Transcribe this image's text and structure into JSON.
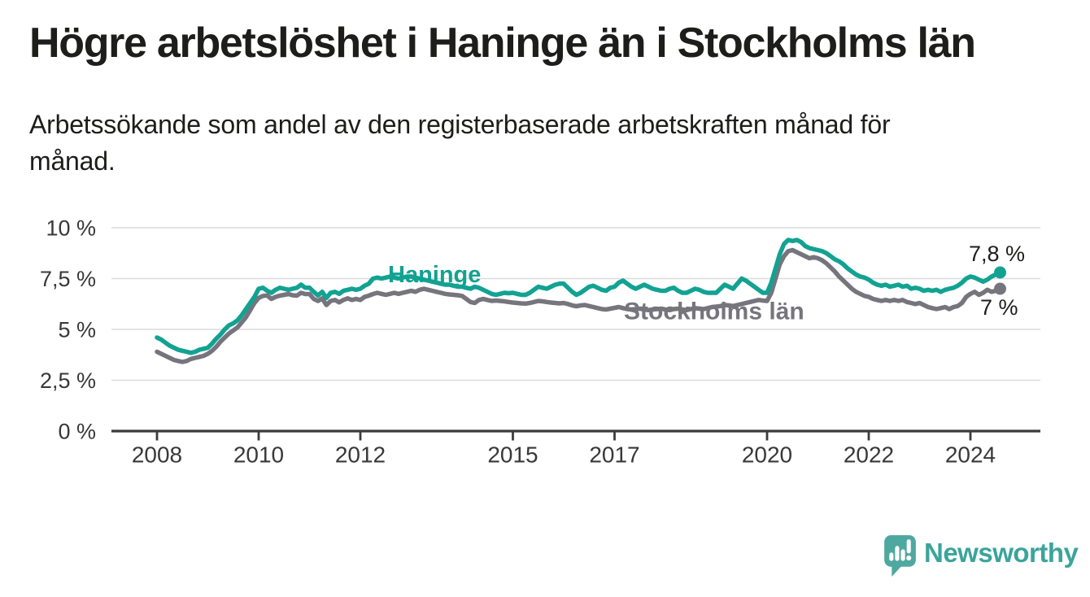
{
  "header": {
    "title": "Högre arbetslöshet i Haninge än i Stockholms län",
    "subtitle": "Arbetssökande som andel av den registerbaserade arbetskraften månad för månad."
  },
  "chart_data": {
    "type": "line",
    "title": "Högre arbetslöshet i Haninge än i Stockholms län",
    "xlabel": "",
    "ylabel": "Arbetssökande som andel av den registerbaserade arbetskraften",
    "x_unit": "month",
    "x_range": [
      "2008-01",
      "2024-08"
    ],
    "ylim": [
      0,
      10.5
    ],
    "grid": "horizontal",
    "legend_position": "inline-labels",
    "x_ticks": [
      {
        "value": 2008,
        "label": "2008"
      },
      {
        "value": 2010,
        "label": "2010"
      },
      {
        "value": 2012,
        "label": "2012"
      },
      {
        "value": 2015,
        "label": "2015"
      },
      {
        "value": 2017,
        "label": "2017"
      },
      {
        "value": 2020,
        "label": "2020"
      },
      {
        "value": 2022,
        "label": "2022"
      },
      {
        "value": 2024,
        "label": "2024"
      }
    ],
    "y_ticks": [
      {
        "value": 0,
        "label": "0 %"
      },
      {
        "value": 2.5,
        "label": "2,5 %"
      },
      {
        "value": 5,
        "label": "5 %"
      },
      {
        "value": 7.5,
        "label": "7,5 %"
      },
      {
        "value": 10,
        "label": "10 %"
      }
    ],
    "series": [
      {
        "id": "haninge",
        "name": "Haninge",
        "color": "#12a292",
        "end_label": "7,8 %",
        "end_value": 7.8,
        "values": [
          4.6,
          4.5,
          4.35,
          4.2,
          4.1,
          4.0,
          3.95,
          3.9,
          3.85,
          3.9,
          4.0,
          4.05,
          4.1,
          4.3,
          4.55,
          4.75,
          5.0,
          5.2,
          5.3,
          5.45,
          5.7,
          6.0,
          6.3,
          6.6,
          7.0,
          7.05,
          6.9,
          6.8,
          6.95,
          7.05,
          7.0,
          6.95,
          7.0,
          7.05,
          7.2,
          7.05,
          7.05,
          6.85,
          6.67,
          6.85,
          6.55,
          6.8,
          6.85,
          6.75,
          6.9,
          6.95,
          7.0,
          6.95,
          7.0,
          7.15,
          7.25,
          7.5,
          7.55,
          7.5,
          7.55,
          7.6,
          7.55,
          7.5,
          7.55,
          7.6,
          7.6,
          7.55,
          7.5,
          7.45,
          7.4,
          7.35,
          7.3,
          7.25,
          7.2,
          7.2,
          7.15,
          7.1,
          7.1,
          7.05,
          7.0,
          7.1,
          7.05,
          6.95,
          6.85,
          6.75,
          6.7,
          6.75,
          6.8,
          6.78,
          6.8,
          6.75,
          6.7,
          6.7,
          6.8,
          6.95,
          7.1,
          7.05,
          7.0,
          7.1,
          7.2,
          7.25,
          7.25,
          7.05,
          6.85,
          6.7,
          6.8,
          6.95,
          7.1,
          7.15,
          7.05,
          6.95,
          6.9,
          7.05,
          7.1,
          7.3,
          7.4,
          7.25,
          7.1,
          7.0,
          7.1,
          7.2,
          7.1,
          7.0,
          6.95,
          6.9,
          6.9,
          7.0,
          7.05,
          6.9,
          6.8,
          6.8,
          6.9,
          7.0,
          6.95,
          6.85,
          6.8,
          6.8,
          6.8,
          7.0,
          7.2,
          7.1,
          7.0,
          7.25,
          7.5,
          7.4,
          7.25,
          7.1,
          6.95,
          6.8,
          6.8,
          7.3,
          8.0,
          8.7,
          9.2,
          9.4,
          9.35,
          9.4,
          9.3,
          9.1,
          9.0,
          8.95,
          8.9,
          8.85,
          8.75,
          8.6,
          8.45,
          8.35,
          8.2,
          8.0,
          7.85,
          7.7,
          7.6,
          7.55,
          7.45,
          7.3,
          7.2,
          7.15,
          7.2,
          7.1,
          7.15,
          7.2,
          7.1,
          7.15,
          7.0,
          7.05,
          7.0,
          6.9,
          6.95,
          6.9,
          6.95,
          6.85,
          6.95,
          7.0,
          7.05,
          7.15,
          7.3,
          7.5,
          7.6,
          7.55,
          7.45,
          7.35,
          7.45,
          7.6,
          7.7,
          7.8
        ]
      },
      {
        "id": "stockholms-lan",
        "name": "Stockholms län",
        "color": "#76757d",
        "end_label": "7 %",
        "end_value": 7.0,
        "values": [
          3.9,
          3.8,
          3.7,
          3.6,
          3.5,
          3.45,
          3.4,
          3.45,
          3.55,
          3.6,
          3.65,
          3.7,
          3.8,
          3.95,
          4.15,
          4.4,
          4.6,
          4.8,
          4.95,
          5.1,
          5.35,
          5.6,
          5.95,
          6.3,
          6.55,
          6.65,
          6.67,
          6.5,
          6.6,
          6.66,
          6.7,
          6.74,
          6.68,
          6.66,
          6.8,
          6.74,
          6.74,
          6.5,
          6.4,
          6.53,
          6.2,
          6.4,
          6.45,
          6.33,
          6.45,
          6.53,
          6.45,
          6.5,
          6.45,
          6.6,
          6.66,
          6.74,
          6.8,
          6.75,
          6.7,
          6.75,
          6.8,
          6.75,
          6.8,
          6.85,
          6.9,
          6.85,
          6.95,
          7.0,
          6.95,
          6.9,
          6.85,
          6.8,
          6.75,
          6.72,
          6.7,
          6.68,
          6.65,
          6.5,
          6.35,
          6.3,
          6.45,
          6.5,
          6.45,
          6.4,
          6.42,
          6.4,
          6.38,
          6.35,
          6.32,
          6.3,
          6.28,
          6.27,
          6.3,
          6.35,
          6.4,
          6.38,
          6.35,
          6.32,
          6.3,
          6.28,
          6.3,
          6.25,
          6.18,
          6.14,
          6.18,
          6.2,
          6.15,
          6.1,
          6.05,
          6.0,
          5.98,
          6.02,
          6.06,
          6.1,
          6.05,
          6.0,
          5.98,
          6.0,
          6.02,
          5.98,
          5.95,
          5.98,
          6.0,
          6.02,
          5.98,
          5.95,
          6.0,
          6.02,
          5.98,
          5.95,
          6.0,
          6.05,
          6.02,
          6.0,
          6.05,
          6.1,
          6.12,
          6.15,
          6.2,
          6.18,
          6.15,
          6.2,
          6.25,
          6.3,
          6.35,
          6.4,
          6.45,
          6.42,
          6.4,
          6.8,
          7.5,
          8.2,
          8.6,
          8.85,
          8.9,
          8.8,
          8.7,
          8.6,
          8.5,
          8.55,
          8.5,
          8.4,
          8.25,
          8.05,
          7.85,
          7.6,
          7.4,
          7.2,
          7.0,
          6.85,
          6.75,
          6.65,
          6.6,
          6.5,
          6.45,
          6.4,
          6.45,
          6.4,
          6.45,
          6.4,
          6.45,
          6.35,
          6.3,
          6.25,
          6.3,
          6.2,
          6.1,
          6.05,
          6.0,
          6.05,
          6.1,
          6.0,
          6.1,
          6.15,
          6.3,
          6.6,
          6.75,
          6.85,
          6.7,
          6.8,
          6.95,
          6.85,
          6.9,
          7.0
        ]
      }
    ]
  },
  "branding": {
    "logo_text": "Newsworthy",
    "logo_icon": "newsworthy-speech-bubble-bar-chart-icon"
  }
}
